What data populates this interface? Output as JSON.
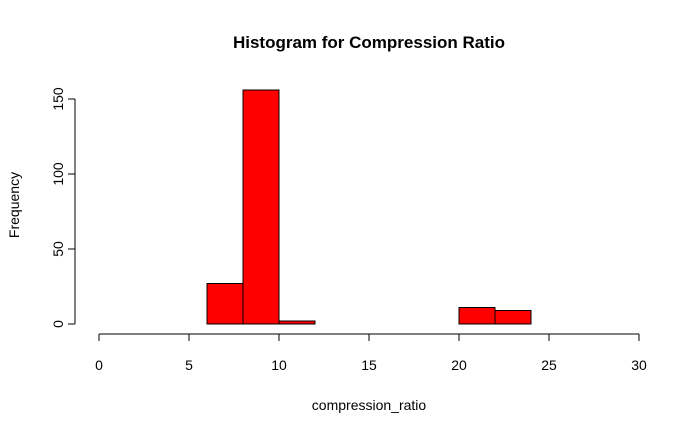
{
  "chart_data": {
    "type": "bar",
    "title": "Histogram for Compression Ratio",
    "xlabel": "compression_ratio",
    "ylabel": "Frequency",
    "bins": [
      {
        "start": 6,
        "end": 8,
        "count": 27
      },
      {
        "start": 8,
        "end": 10,
        "count": 156
      },
      {
        "start": 10,
        "end": 12,
        "count": 2
      },
      {
        "start": 12,
        "end": 14,
        "count": 0
      },
      {
        "start": 14,
        "end": 16,
        "count": 0
      },
      {
        "start": 16,
        "end": 18,
        "count": 0
      },
      {
        "start": 18,
        "end": 20,
        "count": 0
      },
      {
        "start": 20,
        "end": 22,
        "count": 11
      },
      {
        "start": 22,
        "end": 24,
        "count": 9
      }
    ],
    "xlim": [
      0,
      30
    ],
    "ylim": [
      0,
      156
    ],
    "x_ticks": [
      "0",
      "5",
      "10",
      "15",
      "20",
      "25",
      "30"
    ],
    "y_ticks": [
      "0",
      "50",
      "100",
      "150"
    ],
    "bar_color": "#ff0000",
    "grid": false,
    "legend": "none"
  }
}
